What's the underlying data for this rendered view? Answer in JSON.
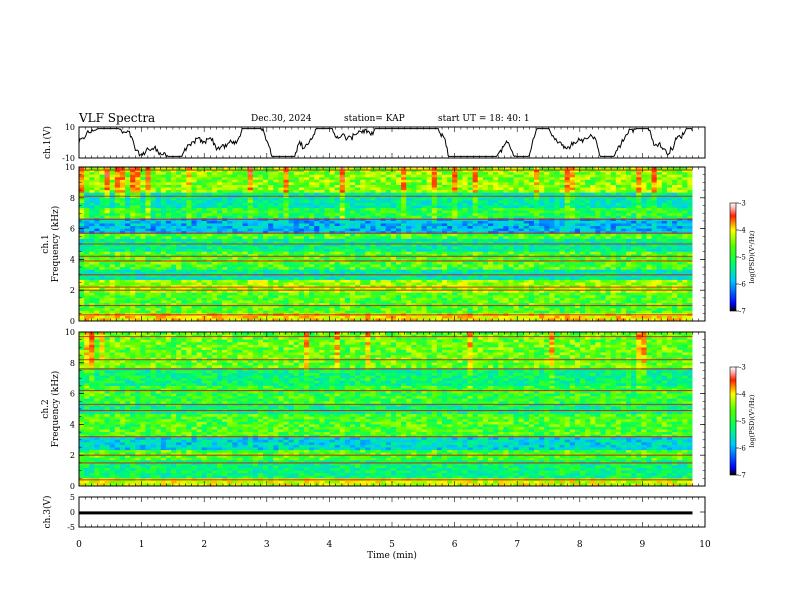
{
  "header": {
    "title": "VLF Spectra",
    "date": "Dec.30, 2024",
    "station": "station= KAP",
    "start": "start  UT  =   18: 40: 1"
  },
  "chart_data": [
    {
      "type": "line",
      "name": "ch1-waveform",
      "ylabel": "ch.1(V)",
      "ylim": [
        -10,
        10
      ],
      "yticks": [
        "10",
        "-10"
      ],
      "xlim": [
        0,
        10
      ],
      "x_end": 9.8
    },
    {
      "type": "heatmap",
      "name": "ch1-spectrogram",
      "ylabel_channel": "ch.1",
      "ylabel": "Frequency (kHz)",
      "ylim": [
        0,
        10
      ],
      "yticks": [
        "0",
        "2",
        "4",
        "6",
        "8",
        "10"
      ],
      "xlim": [
        0,
        10
      ],
      "x_end": 9.8,
      "colorbar": {
        "label": "log(PSD)(V²/Hz)",
        "range": [
          -7,
          -3
        ],
        "ticks": [
          "-3",
          "-4",
          "-5",
          "-6",
          "-7"
        ]
      },
      "bands": [
        {
          "from": 0.0,
          "to": 0.5,
          "level": -4.3
        },
        {
          "from": 0.5,
          "to": 1.8,
          "level": -5.0
        },
        {
          "from": 1.8,
          "to": 2.6,
          "level": -4.7
        },
        {
          "from": 2.6,
          "to": 3.4,
          "level": -5.6
        },
        {
          "from": 3.4,
          "to": 4.5,
          "level": -5.0
        },
        {
          "from": 4.5,
          "to": 5.3,
          "level": -5.5
        },
        {
          "from": 5.3,
          "to": 5.6,
          "level": -5.0
        },
        {
          "from": 5.6,
          "to": 6.6,
          "level": -6.0
        },
        {
          "from": 6.6,
          "to": 7.4,
          "level": -5.2
        },
        {
          "from": 7.4,
          "to": 8.3,
          "level": -5.6
        },
        {
          "from": 8.3,
          "to": 10.0,
          "level": -4.8
        }
      ],
      "lines_khz": [
        0.4,
        1.0,
        2.0,
        2.2,
        3.0,
        3.9,
        4.2,
        5.0,
        5.7,
        6.6,
        8.1,
        9.8
      ]
    },
    {
      "type": "heatmap",
      "name": "ch2-spectrogram",
      "ylabel_channel": "ch.2",
      "ylabel": "Frequency (kHz)",
      "ylim": [
        0,
        10
      ],
      "yticks": [
        "0",
        "2",
        "4",
        "6",
        "8",
        "10"
      ],
      "xlim": [
        0,
        10
      ],
      "x_end": 9.8,
      "colorbar": {
        "label": "log(PSD)(V²/Hz)",
        "range": [
          -7,
          -3
        ],
        "ticks": [
          "-3",
          "-4",
          "-5",
          "-6",
          "-7"
        ]
      },
      "bands": [
        {
          "from": 0.0,
          "to": 0.5,
          "level": -4.5
        },
        {
          "from": 0.5,
          "to": 1.6,
          "level": -5.4
        },
        {
          "from": 1.6,
          "to": 2.4,
          "level": -5.0
        },
        {
          "from": 2.4,
          "to": 3.2,
          "level": -5.8
        },
        {
          "from": 3.2,
          "to": 4.6,
          "level": -5.0
        },
        {
          "from": 4.6,
          "to": 5.4,
          "level": -5.4
        },
        {
          "from": 5.4,
          "to": 6.5,
          "level": -5.1
        },
        {
          "from": 6.5,
          "to": 7.6,
          "level": -5.4
        },
        {
          "from": 7.6,
          "to": 10.0,
          "level": -4.9
        }
      ],
      "lines_khz": [
        0.4,
        1.5,
        2.0,
        3.2,
        4.9,
        5.3,
        6.2,
        7.6,
        8.2,
        9.7
      ]
    },
    {
      "type": "line",
      "name": "ch3-waveform",
      "ylabel": "ch.3(V)",
      "ylim": [
        -5,
        5
      ],
      "yticks": [
        "5",
        "0",
        "-5"
      ],
      "xlim": [
        0,
        10
      ],
      "x_end": 9.8,
      "xlabel": "Time (min)",
      "xticks": [
        "0",
        "1",
        "2",
        "3",
        "4",
        "5",
        "6",
        "7",
        "8",
        "9",
        "10"
      ],
      "band": [
        -0.8,
        0.2
      ]
    }
  ]
}
